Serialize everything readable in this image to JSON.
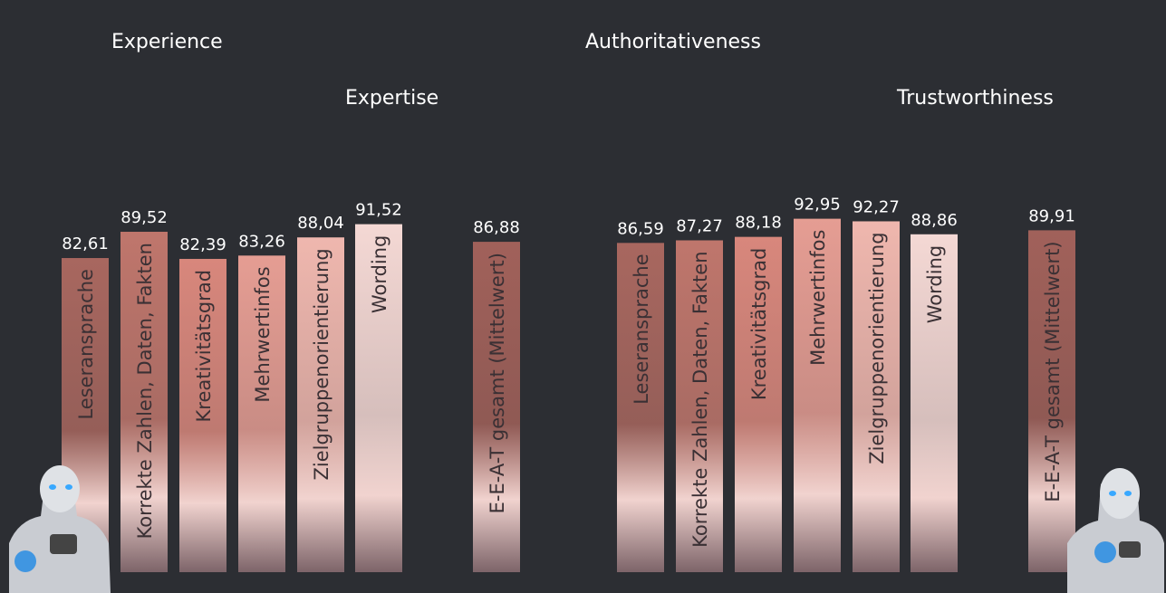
{
  "chart_data": [
    {
      "type": "bar",
      "headings": [
        "Experience",
        "Expertise"
      ],
      "categories": [
        "Leseransprache",
        "Korrekte Zahlen, Daten, Fakten",
        "Kreativitätsgrad",
        "Mehrwertinfos",
        "Zielgruppenorientierung",
        "Wording",
        "E-E-A-T gesamt (Mittelwert)"
      ],
      "values": [
        82.61,
        89.52,
        82.39,
        83.26,
        88.04,
        91.52,
        86.88
      ],
      "value_labels": [
        "82,61",
        "89,52",
        "82,39",
        "83,26",
        "88,04",
        "91,52",
        "86,88"
      ],
      "colors": [
        "#a8675f",
        "#bf766c",
        "#d8877c",
        "#e59d93",
        "#efb7ae",
        "#f4d8d4",
        "#a1615a"
      ]
    },
    {
      "type": "bar",
      "headings": [
        "Authoritativeness",
        "Trustworthiness"
      ],
      "categories": [
        "Leseransprache",
        "Korrekte Zahlen, Daten, Fakten",
        "Kreativitätsgrad",
        "Mehrwertinfos",
        "Zielgruppenorientierung",
        "Wording",
        "E-E-A-T gesamt (Mittelwert)"
      ],
      "values": [
        86.59,
        87.27,
        88.18,
        92.95,
        92.27,
        88.86,
        89.91
      ],
      "value_labels": [
        "86,59",
        "87,27",
        "88,18",
        "92,95",
        "92,27",
        "88,86",
        "89,91"
      ],
      "colors": [
        "#a8675f",
        "#bf766c",
        "#d8877c",
        "#e59d93",
        "#efb7ae",
        "#f4d8d4",
        "#a1615a"
      ]
    }
  ]
}
